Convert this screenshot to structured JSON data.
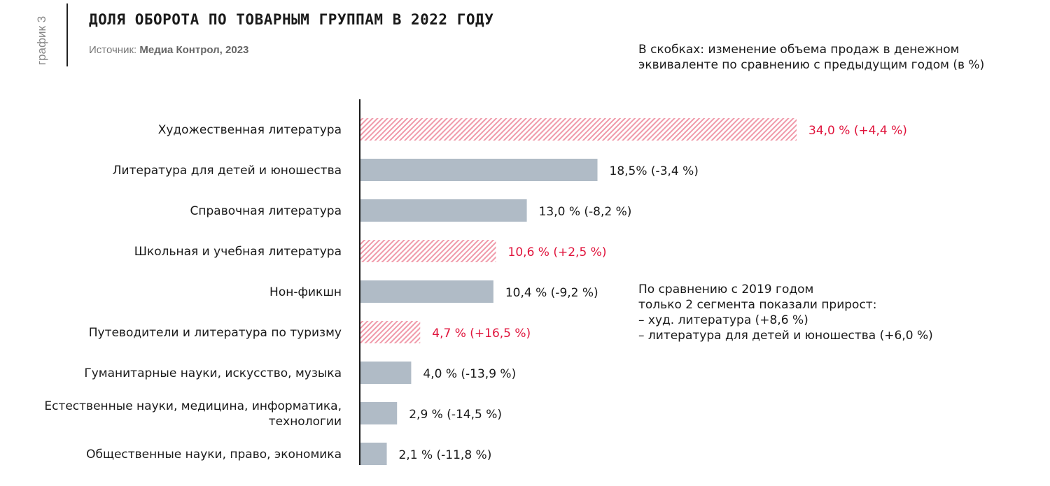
{
  "side_label": "график 3",
  "title": "ДОЛЯ ОБОРОТА ПО ТОВАРНЫМ ГРУППАМ В 2022 ГОДУ",
  "source_prefix": "Источник: ",
  "source": "Медиа Контрол, 2023",
  "note_top": "В скобках: изменение объема продаж в денежном эквиваленте по сравнению с предыдущим годом (в %)",
  "note_side": [
    "По сравнению с 2019 годом",
    "только 2 сегмента показали прирост:",
    "– худ. литература (+8,6 %)",
    "– литература для детей и юношества (+6,0 %)"
  ],
  "colors": {
    "growth": "#e0143c",
    "decline": "#b0bbc6"
  },
  "chart_data": {
    "type": "bar",
    "orientation": "horizontal",
    "title": "ДОЛЯ ОБОРОТА ПО ТОВАРНЫМ ГРУППАМ В 2022 ГОДУ",
    "categories": [
      [
        "Художественная литература"
      ],
      [
        "Литература для детей и юношества"
      ],
      [
        "Справочная литература"
      ],
      [
        "Школьная и учебная литература"
      ],
      [
        "Нон-фикшн"
      ],
      [
        "Путеводители и литература по туризму"
      ],
      [
        "Гуманитарные науки, искусство, музыка"
      ],
      [
        "Естественные науки, медицина, информатика,",
        "технологии"
      ],
      [
        "Общественные науки, право, экономика"
      ]
    ],
    "values": [
      34.0,
      18.5,
      13.0,
      10.6,
      10.4,
      4.7,
      4.0,
      2.9,
      2.1
    ],
    "change": [
      4.4,
      -3.4,
      -8.2,
      2.5,
      -9.2,
      16.5,
      -13.9,
      -14.5,
      -11.8
    ],
    "labels": [
      "34,0 % (+4,4 %)",
      "18,5% (-3,4 %)",
      "13,0 % (-8,2 %)",
      "10,6 % (+2,5 %)",
      "10,4 % (-9,2 %)",
      "4,7 % (+16,5 %)",
      "4,0 % (-13,9 %)",
      "2,9 % (-14,5 %)",
      "2,1 % (-11,8 %)"
    ],
    "xlim": [
      0,
      34
    ],
    "grid": false
  }
}
